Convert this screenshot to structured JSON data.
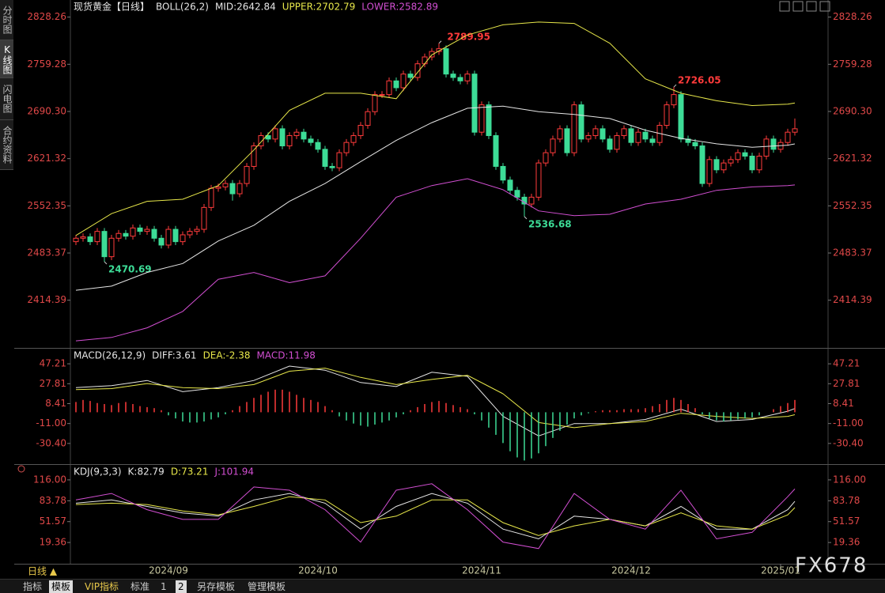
{
  "sidebar": [
    "分时图",
    "K线图",
    "闪电图",
    "合约资料"
  ],
  "period": "日线 ▲",
  "toolbar": [
    "指标",
    "模板",
    "VIP指标",
    "标准",
    "1",
    "2",
    "另存模板",
    "管理模板"
  ],
  "watermark": "FX678",
  "chart_data": [
    {
      "type": "candlestick",
      "title": "现货黄金【日线】",
      "indicator": "BOLL(26,2)",
      "up_color": "#ff3b3b",
      "down_color": "#3ddc97",
      "open": [
        2500,
        2505,
        2507,
        2500,
        2515,
        2478,
        2505,
        2512,
        2508,
        2520,
        2515,
        2518,
        2505,
        2495,
        2518,
        2500,
        2510,
        2515,
        2518,
        2550,
        2578,
        2580,
        2585,
        2570,
        2585,
        2610,
        2640,
        2655,
        2650,
        2665,
        2640,
        2655,
        2660,
        2650,
        2645,
        2635,
        2610,
        2608,
        2630,
        2645,
        2655,
        2670,
        2690,
        2715,
        2715,
        2735,
        2725,
        2745,
        2740,
        2760,
        2770,
        2778,
        2782,
        2745,
        2740,
        2735,
        2745,
        2660,
        2700,
        2655,
        2610,
        2590,
        2575,
        2565,
        2555,
        2565,
        2615,
        2630,
        2650,
        2665,
        2630,
        2700,
        2650,
        2655,
        2665,
        2650,
        2635,
        2655,
        2665,
        2645,
        2660,
        2650,
        2645,
        2670,
        2700,
        2715,
        2650,
        2645,
        2640,
        2585,
        2620,
        2605,
        2615,
        2620,
        2630,
        2625,
        2605,
        2625,
        2650,
        2635,
        2645,
        2660
      ],
      "high": [
        2510,
        2512,
        2512,
        2520,
        2520,
        2510,
        2517,
        2517,
        2525,
        2525,
        2523,
        2523,
        2510,
        2523,
        2523,
        2515,
        2520,
        2523,
        2555,
        2583,
        2585,
        2590,
        2590,
        2590,
        2615,
        2645,
        2660,
        2660,
        2670,
        2670,
        2660,
        2665,
        2665,
        2655,
        2650,
        2640,
        2615,
        2635,
        2650,
        2660,
        2675,
        2695,
        2720,
        2720,
        2740,
        2740,
        2750,
        2750,
        2765,
        2775,
        2783,
        2789.95,
        2787,
        2750,
        2745,
        2750,
        2750,
        2705,
        2705,
        2660,
        2615,
        2595,
        2580,
        2570,
        2570,
        2620,
        2635,
        2655,
        2670,
        2670,
        2705,
        2705,
        2660,
        2670,
        2670,
        2655,
        2660,
        2670,
        2670,
        2665,
        2665,
        2655,
        2675,
        2705,
        2726.05,
        2720,
        2655,
        2650,
        2645,
        2625,
        2625,
        2620,
        2625,
        2635,
        2635,
        2630,
        2630,
        2655,
        2655,
        2650,
        2665,
        2680
      ],
      "low": [
        2495,
        2500,
        2495,
        2495,
        2470.69,
        2473,
        2500,
        2503,
        2503,
        2510,
        2510,
        2500,
        2490,
        2490,
        2495,
        2495,
        2505,
        2510,
        2513,
        2545,
        2573,
        2575,
        2560,
        2565,
        2580,
        2605,
        2635,
        2645,
        2645,
        2635,
        2635,
        2650,
        2645,
        2640,
        2630,
        2605,
        2603,
        2603,
        2625,
        2640,
        2650,
        2665,
        2685,
        2710,
        2710,
        2720,
        2720,
        2735,
        2735,
        2755,
        2765,
        2773,
        2740,
        2735,
        2730,
        2730,
        2655,
        2655,
        2650,
        2605,
        2585,
        2570,
        2560,
        2536.68,
        2550,
        2560,
        2610,
        2625,
        2645,
        2625,
        2625,
        2645,
        2645,
        2650,
        2645,
        2630,
        2630,
        2650,
        2640,
        2640,
        2645,
        2640,
        2640,
        2665,
        2695,
        2645,
        2640,
        2635,
        2580,
        2580,
        2600,
        2600,
        2610,
        2615,
        2620,
        2600,
        2600,
        2620,
        2630,
        2630,
        2640,
        2655
      ],
      "close": [
        2505,
        2507,
        2500,
        2515,
        2478,
        2505,
        2512,
        2508,
        2520,
        2515,
        2518,
        2505,
        2495,
        2518,
        2500,
        2510,
        2515,
        2518,
        2550,
        2578,
        2580,
        2585,
        2570,
        2585,
        2610,
        2640,
        2655,
        2650,
        2665,
        2640,
        2655,
        2660,
        2650,
        2645,
        2635,
        2610,
        2608,
        2630,
        2645,
        2655,
        2670,
        2690,
        2715,
        2715,
        2735,
        2725,
        2745,
        2740,
        2760,
        2770,
        2778,
        2782,
        2745,
        2740,
        2735,
        2745,
        2660,
        2700,
        2655,
        2610,
        2590,
        2575,
        2565,
        2555,
        2565,
        2615,
        2630,
        2650,
        2665,
        2630,
        2700,
        2650,
        2655,
        2665,
        2650,
        2635,
        2655,
        2665,
        2645,
        2660,
        2650,
        2645,
        2670,
        2700,
        2715,
        2650,
        2645,
        2640,
        2585,
        2620,
        2605,
        2615,
        2620,
        2630,
        2625,
        2605,
        2625,
        2650,
        2635,
        2645,
        2660,
        2665
      ],
      "series": [
        {
          "name": "MID:2642.84",
          "color": "#e6e6e6",
          "x": [
            0,
            5,
            10,
            15,
            20,
            25,
            30,
            35,
            40,
            45,
            50,
            55,
            60,
            65,
            70,
            75,
            80,
            85,
            90,
            95,
            100,
            101
          ],
          "values": [
            2429,
            2435,
            2455,
            2468,
            2501,
            2524,
            2559,
            2585,
            2617,
            2648,
            2674,
            2695,
            2698,
            2690,
            2686,
            2680,
            2663,
            2651,
            2643,
            2638,
            2641,
            2642.84
          ]
        },
        {
          "name": "UPPER:2702.79",
          "color": "#e8e84a",
          "x": [
            0,
            5,
            10,
            15,
            20,
            25,
            30,
            35,
            40,
            45,
            50,
            55,
            60,
            65,
            70,
            75,
            80,
            85,
            90,
            95,
            100,
            101
          ],
          "values": [
            2509,
            2541,
            2559,
            2562,
            2582,
            2634,
            2692,
            2717,
            2717,
            2709,
            2773,
            2802,
            2817,
            2821,
            2819,
            2790,
            2738,
            2717,
            2706,
            2699,
            2701,
            2702.79
          ]
        },
        {
          "name": "LOWER:2582.89",
          "color": "#d24fd2",
          "x": [
            0,
            5,
            10,
            15,
            20,
            25,
            30,
            35,
            40,
            45,
            50,
            55,
            60,
            65,
            70,
            75,
            80,
            85,
            90,
            95,
            100,
            101
          ],
          "values": [
            2355,
            2360,
            2374,
            2398,
            2445,
            2455,
            2440,
            2450,
            2505,
            2565,
            2582,
            2592,
            2576,
            2545,
            2538,
            2540,
            2555,
            2562,
            2575,
            2580,
            2582,
            2582.89
          ]
        }
      ],
      "ylim": [
        2347,
        2844
      ],
      "yticks": [
        2828.26,
        2759.28,
        {
          "value": 2690.3,
          "label": "2690.30"
        },
        2621.32,
        2552.35,
        2483.37,
        2414.39
      ],
      "xticks": [
        {
          "value": 13,
          "label": "2024/09"
        },
        {
          "value": 34,
          "label": "2024/10"
        },
        {
          "value": 57,
          "label": "2024/11"
        },
        {
          "value": 78,
          "label": "2024/12"
        },
        {
          "value": 99,
          "label": "2025/01"
        }
      ]
    },
    {
      "type": "line",
      "title": "MACD(26,12,9)",
      "series": [
        {
          "name": "DIFF:3.61",
          "color": "#e6e6e6",
          "x": [
            0,
            5,
            10,
            15,
            20,
            25,
            30,
            35,
            40,
            45,
            50,
            55,
            60,
            65,
            70,
            75,
            80,
            85,
            90,
            95,
            100,
            101
          ],
          "values": [
            24,
            26,
            31,
            20,
            24,
            31,
            45,
            41,
            29,
            25,
            39,
            35,
            -4,
            -23,
            -11,
            -11,
            -7,
            3,
            -9,
            -7,
            1,
            3.61
          ]
        },
        {
          "name": "DEA:-2.38",
          "color": "#e8e84a",
          "x": [
            0,
            5,
            10,
            15,
            20,
            25,
            30,
            35,
            40,
            45,
            50,
            55,
            60,
            65,
            70,
            75,
            80,
            85,
            90,
            95,
            100,
            101
          ],
          "values": [
            22,
            23,
            28,
            24,
            23,
            27,
            40,
            43,
            34,
            27,
            32,
            36,
            18,
            -10,
            -15,
            -11,
            -9,
            -1,
            -4,
            -6,
            -4,
            -2.38
          ]
        },
        {
          "name": "MACD:11.98",
          "color": "#d24fd2",
          "type": "bar",
          "up_color": "#ff3b3b",
          "down_color": "#3ddc97",
          "values": [
            10,
            12,
            11,
            9,
            8,
            7,
            9,
            10,
            8,
            6,
            5,
            4,
            2,
            -3,
            -6,
            -9,
            -10,
            -10,
            -9,
            -7,
            -5,
            -2,
            2,
            6,
            10,
            14,
            17,
            20,
            22,
            22,
            20,
            17,
            14,
            12,
            10,
            6,
            2,
            -4,
            -8,
            -11,
            -13,
            -14,
            -12,
            -10,
            -8,
            -5,
            -2,
            2,
            5,
            8,
            10,
            11,
            9,
            7,
            5,
            3,
            -2,
            -8,
            -15,
            -22,
            -30,
            -38,
            -44,
            -47,
            -45,
            -40,
            -33,
            -25,
            -18,
            -12,
            -6,
            -3,
            -1,
            1,
            2,
            2,
            2,
            3,
            3,
            3,
            4,
            6,
            8,
            12,
            14,
            12,
            8,
            4,
            -2,
            -6,
            -8,
            -9,
            -8,
            -7,
            -6,
            -5,
            -3,
            0,
            3,
            6,
            9,
            11.98
          ]
        }
      ],
      "ylim": [
        -49,
        60.4
      ],
      "yticks": [
        47.21,
        27.81,
        8.41,
        {
          "value": -11,
          "label": "-11.00"
        },
        {
          "value": -30.4,
          "label": "-30.40"
        }
      ]
    },
    {
      "type": "line",
      "title": "KDJ(9,3,3)",
      "series": [
        {
          "name": "K:82.79",
          "color": "#e6e6e6",
          "x": [
            0,
            5,
            10,
            15,
            20,
            25,
            30,
            35,
            40,
            45,
            50,
            55,
            60,
            65,
            70,
            75,
            80,
            85,
            90,
            95,
            100,
            101
          ],
          "values": [
            80,
            85,
            75,
            65,
            60,
            85,
            95,
            80,
            40,
            75,
            95,
            80,
            40,
            25,
            60,
            55,
            45,
            75,
            40,
            40,
            70,
            82.79
          ]
        },
        {
          "name": "D:73.21",
          "color": "#e8e84a",
          "x": [
            0,
            5,
            10,
            15,
            20,
            25,
            30,
            35,
            40,
            45,
            50,
            55,
            60,
            65,
            70,
            75,
            80,
            85,
            90,
            95,
            100,
            101
          ],
          "values": [
            78,
            80,
            78,
            68,
            62,
            75,
            90,
            85,
            50,
            60,
            85,
            85,
            50,
            30,
            45,
            55,
            45,
            65,
            45,
            40,
            62,
            73.21
          ]
        },
        {
          "name": "J:101.94",
          "color": "#d24fd2",
          "x": [
            0,
            5,
            10,
            15,
            20,
            25,
            30,
            35,
            40,
            45,
            50,
            55,
            60,
            65,
            70,
            75,
            80,
            85,
            90,
            95,
            100,
            101
          ],
          "values": [
            85,
            95,
            70,
            55,
            55,
            105,
            100,
            70,
            20,
            100,
            110,
            70,
            20,
            10,
            95,
            55,
            40,
            100,
            25,
            35,
            90,
            101.94
          ]
        }
      ],
      "ylim": [
        -12.2,
        134.2
      ],
      "yticks": [
        {
          "value": 116,
          "label": "116.00"
        },
        83.78,
        51.57,
        19.36
      ]
    }
  ]
}
